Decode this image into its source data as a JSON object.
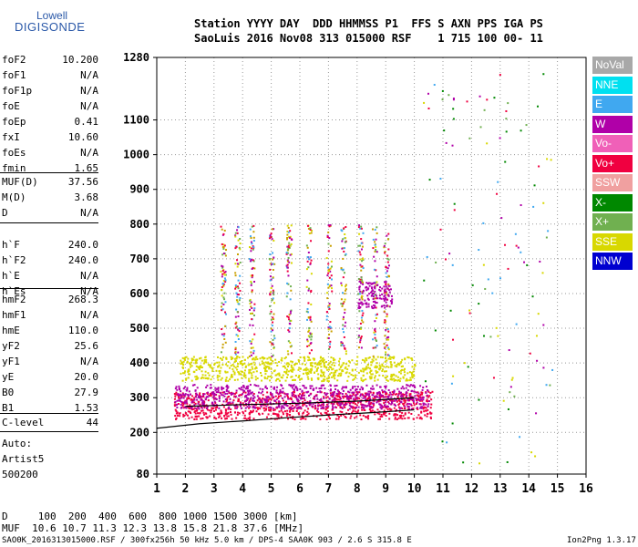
{
  "logo": {
    "line1": "Lowell",
    "line2": "DIGISONDE"
  },
  "header": {
    "row1": "Station YYYY DAY  DDD HHMMSS P1  FFS S AXN PPS IGA PS",
    "row2": "SaoLuis 2016 Nov08 313 015000 RSF    1 715 100 00- 11"
  },
  "params_group1": [
    {
      "k": "foF2",
      "v": "10.200"
    },
    {
      "k": "foF1",
      "v": "N/A"
    },
    {
      "k": "foF1p",
      "v": "N/A"
    },
    {
      "k": "foE",
      "v": "N/A"
    },
    {
      "k": "foEp",
      "v": "0.41"
    },
    {
      "k": "fxI",
      "v": "10.60"
    },
    {
      "k": "foEs",
      "v": "N/A"
    },
    {
      "k": "fmin",
      "v": "1.65"
    }
  ],
  "params_group2": [
    {
      "k": "MUF(D)",
      "v": "37.56"
    },
    {
      "k": "M(D)",
      "v": "3.68"
    },
    {
      "k": "D",
      "v": "N/A"
    }
  ],
  "params_group3": [
    {
      "k": "h`F",
      "v": "240.0"
    },
    {
      "k": "h`F2",
      "v": "240.0"
    },
    {
      "k": "h`E",
      "v": "N/A"
    },
    {
      "k": "h`Es",
      "v": "N/A"
    }
  ],
  "params_group4": [
    {
      "k": "hmF2",
      "v": "268.3"
    },
    {
      "k": "hmF1",
      "v": "N/A"
    },
    {
      "k": "hmE",
      "v": "110.0"
    },
    {
      "k": "yF2",
      "v": "25.6"
    },
    {
      "k": "yF1",
      "v": "N/A"
    },
    {
      "k": "yE",
      "v": "20.0"
    },
    {
      "k": "B0",
      "v": "27.9"
    },
    {
      "k": "B1",
      "v": "1.53"
    }
  ],
  "params_group5": [
    {
      "k": "C-level",
      "v": "44"
    }
  ],
  "autoscale": {
    "l1": "Auto:",
    "l2": "Artist5",
    "l3": "500200"
  },
  "legend": [
    {
      "label": "NoVal",
      "color": "#a8a8a8"
    },
    {
      "label": "NNE",
      "color": "#00e0f0"
    },
    {
      "label": "E",
      "color": "#40a8f0"
    },
    {
      "label": "W",
      "color": "#b000a8"
    },
    {
      "label": "Vo-",
      "color": "#f060b8"
    },
    {
      "label": "Vo+",
      "color": "#f00040"
    },
    {
      "label": "SSW",
      "color": "#f0a0a0"
    },
    {
      "label": "X-",
      "color": "#008800"
    },
    {
      "label": "X+",
      "color": "#70b050"
    },
    {
      "label": "SSE",
      "color": "#d8d800"
    },
    {
      "label": "NNW",
      "color": "#0000d0"
    }
  ],
  "footer": {
    "row1": "D     100  200  400  600  800 1000 1500 3000 [km]",
    "row2": "MUF  10.6 10.7 11.3 12.3 13.8 15.8 21.8 37.6 [MHz]",
    "row3": "SAO0K_2016313015000.RSF / 300fx256h 50 kHz 5.0 km / DPS-4 SAA0K 903 / 2.6 S 315.8 E",
    "version": "Ion2Png 1.3.17"
  },
  "chart_data": {
    "type": "scatter",
    "xlim": [
      1,
      16
    ],
    "xticks": [
      1,
      2,
      3,
      4,
      5,
      6,
      7,
      8,
      9,
      10,
      11,
      12,
      13,
      14,
      15,
      16
    ],
    "yticks": [
      80,
      200,
      300,
      400,
      500,
      600,
      700,
      800,
      900,
      1000,
      1100,
      1280
    ],
    "ylim": [
      80,
      1280
    ],
    "grid": true,
    "clusters": [
      {
        "name": "F-trace main (Vo+/red)",
        "color": "#f00040",
        "x": [
          1.6,
          10.6
        ],
        "y": [
          240,
          320
        ]
      },
      {
        "name": "W purple band",
        "color": "#b000a8",
        "x": [
          1.6,
          10.5
        ],
        "y": [
          270,
          340
        ]
      },
      {
        "name": "SSE yellow band",
        "color": "#d8d800",
        "x": [
          1.8,
          10.0
        ],
        "y": [
          350,
          420
        ]
      },
      {
        "name": "upper spread",
        "color": "#c9a000",
        "x": [
          2.5,
          9.2
        ],
        "y": [
          420,
          800
        ]
      },
      {
        "name": "purple 600 patch",
        "color": "#b000a8",
        "x": [
          8.0,
          9.2
        ],
        "y": [
          560,
          640
        ]
      }
    ],
    "profile_curve": {
      "color": "#000000",
      "x": [
        1.0,
        2.5,
        4.0,
        5.5,
        7.0,
        8.5,
        10.0
      ],
      "y": [
        212,
        225,
        233,
        242,
        250,
        257,
        265
      ]
    },
    "virtual_height_curve": {
      "color": "#000000",
      "x": [
        2.0,
        4.0,
        6.0,
        8.0,
        9.0,
        10.0
      ],
      "y": [
        275,
        280,
        284,
        290,
        295,
        300
      ]
    }
  }
}
